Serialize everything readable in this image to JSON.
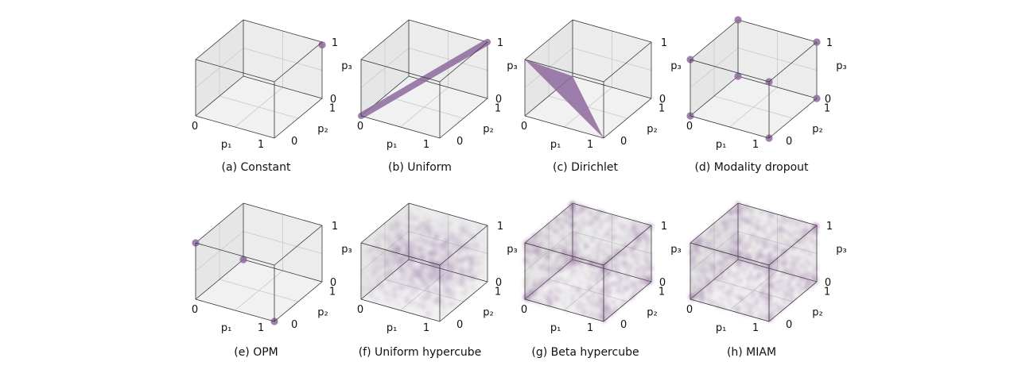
{
  "figure": {
    "colors": {
      "marker": "#8e6a9e",
      "pane_left": "#e6e6e6",
      "pane_right": "#ececec",
      "pane_floor": "#f1f1f1",
      "edge": "#333333",
      "grid": "#c8c8c8"
    }
  },
  "chart_data": [
    {
      "type": "scatter",
      "caption": "(a) Constant",
      "distribution": "constant",
      "xlabel": "p₁",
      "ylabel": "p₂",
      "zlabel": "p₃",
      "x_ticks": [
        "0",
        "1"
      ],
      "y_ticks": [
        "0",
        "1"
      ],
      "z_ticks": [
        "0",
        "1"
      ],
      "xlim": [
        0,
        1
      ],
      "ylim": [
        0,
        1
      ],
      "zlim": [
        0,
        1
      ],
      "points": [
        [
          1,
          1,
          0.95
        ]
      ]
    },
    {
      "type": "scatter",
      "caption": "(b) Uniform",
      "distribution": "uniform",
      "xlabel": "p₁",
      "ylabel": "p₂",
      "zlabel": "p₃",
      "x_ticks": [
        "0",
        "1"
      ],
      "y_ticks": [
        "0",
        "1"
      ],
      "z_ticks": [
        "0",
        "1"
      ],
      "xlim": [
        0,
        1
      ],
      "ylim": [
        0,
        1
      ],
      "zlim": [
        0,
        1
      ],
      "segment": [
        [
          0,
          0,
          0
        ],
        [
          1,
          1,
          1
        ]
      ]
    },
    {
      "type": "scatter",
      "caption": "(c) Dirichlet",
      "distribution": "dirichlet",
      "xlabel": "p₁",
      "ylabel": "p₂",
      "zlabel": "p₃",
      "x_ticks": [
        "0",
        "1"
      ],
      "y_ticks": [
        "0",
        "1"
      ],
      "z_ticks": [
        "0",
        "1"
      ],
      "xlim": [
        0,
        1
      ],
      "ylim": [
        0,
        1
      ],
      "zlim": [
        0,
        1
      ],
      "simplex": [
        [
          1,
          0,
          0
        ],
        [
          0,
          1,
          0
        ],
        [
          0,
          0,
          1
        ]
      ]
    },
    {
      "type": "scatter",
      "caption": "(d) Modality dropout",
      "distribution": "modality_dropout",
      "xlabel": "p₁",
      "ylabel": "p₂",
      "zlabel": "p₃",
      "x_ticks": [
        "0",
        "1"
      ],
      "y_ticks": [
        "0",
        "1"
      ],
      "z_ticks": [
        "0",
        "1"
      ],
      "xlim": [
        0,
        1
      ],
      "ylim": [
        0,
        1
      ],
      "zlim": [
        0,
        1
      ],
      "points": [
        [
          0,
          0,
          0
        ],
        [
          1,
          0,
          0
        ],
        [
          0,
          1,
          0
        ],
        [
          1,
          1,
          0
        ],
        [
          0,
          0,
          1
        ],
        [
          1,
          0,
          1
        ],
        [
          0,
          1,
          1
        ],
        [
          1,
          1,
          1
        ]
      ]
    },
    {
      "type": "scatter",
      "caption": "(e) OPM",
      "distribution": "opm",
      "xlabel": "p₁",
      "ylabel": "p₂",
      "zlabel": "p₃",
      "x_ticks": [
        "0",
        "1"
      ],
      "y_ticks": [
        "0",
        "1"
      ],
      "z_ticks": [
        "0",
        "1"
      ],
      "xlim": [
        0,
        1
      ],
      "ylim": [
        0,
        1
      ],
      "zlim": [
        0,
        1
      ],
      "points": [
        [
          1,
          0,
          0
        ],
        [
          0,
          1,
          0
        ],
        [
          0,
          0,
          1
        ]
      ]
    },
    {
      "type": "scatter",
      "caption": "(f) Uniform hypercube",
      "distribution": "uniform_hypercube",
      "xlabel": "p₁",
      "ylabel": "p₂",
      "zlabel": "p₃",
      "x_ticks": [
        "0",
        "1"
      ],
      "y_ticks": [
        "0",
        "1"
      ],
      "z_ticks": [
        "0",
        "1"
      ],
      "xlim": [
        0,
        1
      ],
      "ylim": [
        0,
        1
      ],
      "zlim": [
        0,
        1
      ]
    },
    {
      "type": "scatter",
      "caption": "(g) Beta hypercube",
      "distribution": "beta_hypercube",
      "xlabel": "p₁",
      "ylabel": "p₂",
      "zlabel": "p₃",
      "x_ticks": [
        "0",
        "1"
      ],
      "y_ticks": [
        "0",
        "1"
      ],
      "z_ticks": [
        "0",
        "1"
      ],
      "xlim": [
        0,
        1
      ],
      "ylim": [
        0,
        1
      ],
      "zlim": [
        0,
        1
      ]
    },
    {
      "type": "scatter",
      "caption": "(h) MIAM",
      "distribution": "miam",
      "xlabel": "p₁",
      "ylabel": "p₂",
      "zlabel": "p₃",
      "x_ticks": [
        "0",
        "1"
      ],
      "y_ticks": [
        "0",
        "1"
      ],
      "z_ticks": [
        "0",
        "1"
      ],
      "xlim": [
        0,
        1
      ],
      "ylim": [
        0,
        1
      ],
      "zlim": [
        0,
        1
      ]
    }
  ]
}
